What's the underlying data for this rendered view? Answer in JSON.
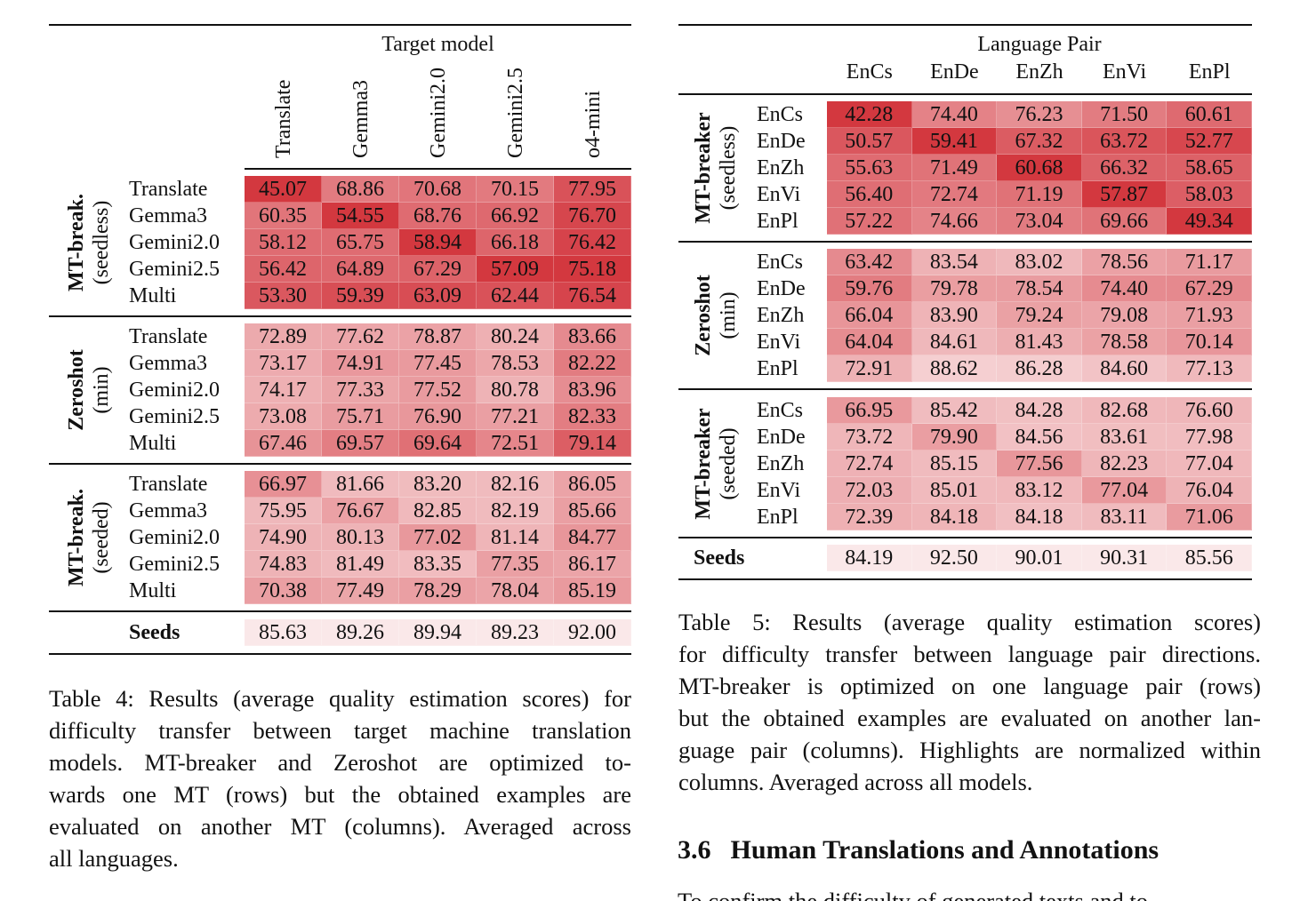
{
  "table4": {
    "header_group": "Target model",
    "columns": [
      "Translate",
      "Gemma3",
      "Gemini2.0",
      "Gemini2.5",
      "o4-mini"
    ],
    "groups": [
      {
        "label_bold": "MT-break.",
        "label_sub": "(seedless)",
        "rows": [
          {
            "label": "Translate",
            "values": [
              "45.07",
              "68.86",
              "70.68",
              "70.15",
              "77.95"
            ]
          },
          {
            "label": "Gemma3",
            "values": [
              "60.35",
              "54.55",
              "68.76",
              "66.92",
              "76.70"
            ]
          },
          {
            "label": "Gemini2.0",
            "values": [
              "58.12",
              "65.75",
              "58.94",
              "66.18",
              "76.42"
            ]
          },
          {
            "label": "Gemini2.5",
            "values": [
              "56.42",
              "64.89",
              "67.29",
              "57.09",
              "75.18"
            ]
          },
          {
            "label": "Multi",
            "values": [
              "53.30",
              "59.39",
              "63.09",
              "62.44",
              "76.54"
            ]
          }
        ]
      },
      {
        "label_bold": "Zeroshot",
        "label_sub": "(min)",
        "rows": [
          {
            "label": "Translate",
            "values": [
              "72.89",
              "77.62",
              "78.87",
              "80.24",
              "83.66"
            ]
          },
          {
            "label": "Gemma3",
            "values": [
              "73.17",
              "74.91",
              "77.45",
              "78.53",
              "82.22"
            ]
          },
          {
            "label": "Gemini2.0",
            "values": [
              "74.17",
              "77.33",
              "77.52",
              "80.78",
              "83.96"
            ]
          },
          {
            "label": "Gemini2.5",
            "values": [
              "73.08",
              "75.71",
              "76.90",
              "77.21",
              "82.33"
            ]
          },
          {
            "label": "Multi",
            "values": [
              "67.46",
              "69.57",
              "69.64",
              "72.51",
              "79.14"
            ]
          }
        ]
      },
      {
        "label_bold": "MT-break.",
        "label_sub": "(seeded)",
        "rows": [
          {
            "label": "Translate",
            "values": [
              "66.97",
              "81.66",
              "83.20",
              "82.16",
              "86.05"
            ]
          },
          {
            "label": "Gemma3",
            "values": [
              "75.95",
              "76.67",
              "82.85",
              "82.19",
              "85.66"
            ]
          },
          {
            "label": "Gemini2.0",
            "values": [
              "74.90",
              "80.13",
              "77.02",
              "81.14",
              "84.77"
            ]
          },
          {
            "label": "Gemini2.5",
            "values": [
              "74.83",
              "81.49",
              "83.35",
              "77.35",
              "86.17"
            ]
          },
          {
            "label": "Multi",
            "values": [
              "70.38",
              "77.49",
              "78.29",
              "78.04",
              "85.19"
            ]
          }
        ]
      }
    ],
    "seeds": {
      "label": "Seeds",
      "values": [
        "85.63",
        "89.26",
        "89.94",
        "89.23",
        "92.00"
      ]
    },
    "caption_lines": [
      "Table 4: Results (average quality estimation scores) for",
      "difficulty transfer between target machine translation",
      "models.  MT-breaker and Zeroshot are optimized to-",
      "wards one MT (rows) but the obtained examples are",
      "evaluated on another MT (columns). Averaged across",
      "all languages."
    ]
  },
  "table5": {
    "header_group": "Language Pair",
    "columns": [
      "EnCs",
      "EnDe",
      "EnZh",
      "EnVi",
      "EnPl"
    ],
    "groups": [
      {
        "label_bold": "MT-breaker",
        "label_sub": "(seedless)",
        "rows": [
          {
            "label": "EnCs",
            "values": [
              "42.28",
              "74.40",
              "76.23",
              "71.50",
              "60.61"
            ]
          },
          {
            "label": "EnDe",
            "values": [
              "50.57",
              "59.41",
              "67.32",
              "63.72",
              "52.77"
            ]
          },
          {
            "label": "EnZh",
            "values": [
              "55.63",
              "71.49",
              "60.68",
              "66.32",
              "58.65"
            ]
          },
          {
            "label": "EnVi",
            "values": [
              "56.40",
              "72.74",
              "71.19",
              "57.87",
              "58.03"
            ]
          },
          {
            "label": "EnPl",
            "values": [
              "57.22",
              "74.66",
              "73.04",
              "69.66",
              "49.34"
            ]
          }
        ]
      },
      {
        "label_bold": "Zeroshot",
        "label_sub": "(min)",
        "rows": [
          {
            "label": "EnCs",
            "values": [
              "63.42",
              "83.54",
              "83.02",
              "78.56",
              "71.17"
            ]
          },
          {
            "label": "EnDe",
            "values": [
              "59.76",
              "79.78",
              "78.54",
              "74.40",
              "67.29"
            ]
          },
          {
            "label": "EnZh",
            "values": [
              "66.04",
              "83.90",
              "79.24",
              "79.08",
              "71.93"
            ]
          },
          {
            "label": "EnVi",
            "values": [
              "64.04",
              "84.61",
              "81.43",
              "78.58",
              "70.14"
            ]
          },
          {
            "label": "EnPl",
            "values": [
              "72.91",
              "88.62",
              "86.28",
              "84.60",
              "77.13"
            ]
          }
        ]
      },
      {
        "label_bold": "MT-breaker",
        "label_sub": "(seeded)",
        "rows": [
          {
            "label": "EnCs",
            "values": [
              "66.95",
              "85.42",
              "84.28",
              "82.68",
              "76.60"
            ]
          },
          {
            "label": "EnDe",
            "values": [
              "73.72",
              "79.90",
              "84.56",
              "83.61",
              "77.98"
            ]
          },
          {
            "label": "EnZh",
            "values": [
              "72.74",
              "85.15",
              "77.56",
              "82.23",
              "77.04"
            ]
          },
          {
            "label": "EnVi",
            "values": [
              "72.03",
              "85.01",
              "83.12",
              "77.04",
              "76.04"
            ]
          },
          {
            "label": "EnPl",
            "values": [
              "72.39",
              "84.18",
              "84.18",
              "83.11",
              "71.06"
            ]
          }
        ]
      }
    ],
    "seeds": {
      "label": "Seeds",
      "values": [
        "84.19",
        "92.50",
        "90.01",
        "90.31",
        "85.56"
      ]
    },
    "caption_lines": [
      "Table 5:  Results (average quality estimation scores)",
      "for difficulty transfer between language pair directions.",
      "MT-breaker is optimized on one language pair (rows)",
      "but the obtained examples are evaluated on another lan-",
      "guage pair (columns). Highlights are normalized within",
      "columns. Averaged across all models."
    ]
  },
  "section": {
    "number": "3.6",
    "title": "Human Translations and Annotations",
    "body_fragment": "To confirm the difficulty of generated texts and to"
  },
  "colors": {
    "highlight_dark": "#d2323a",
    "highlight_light": "#fbeced"
  }
}
